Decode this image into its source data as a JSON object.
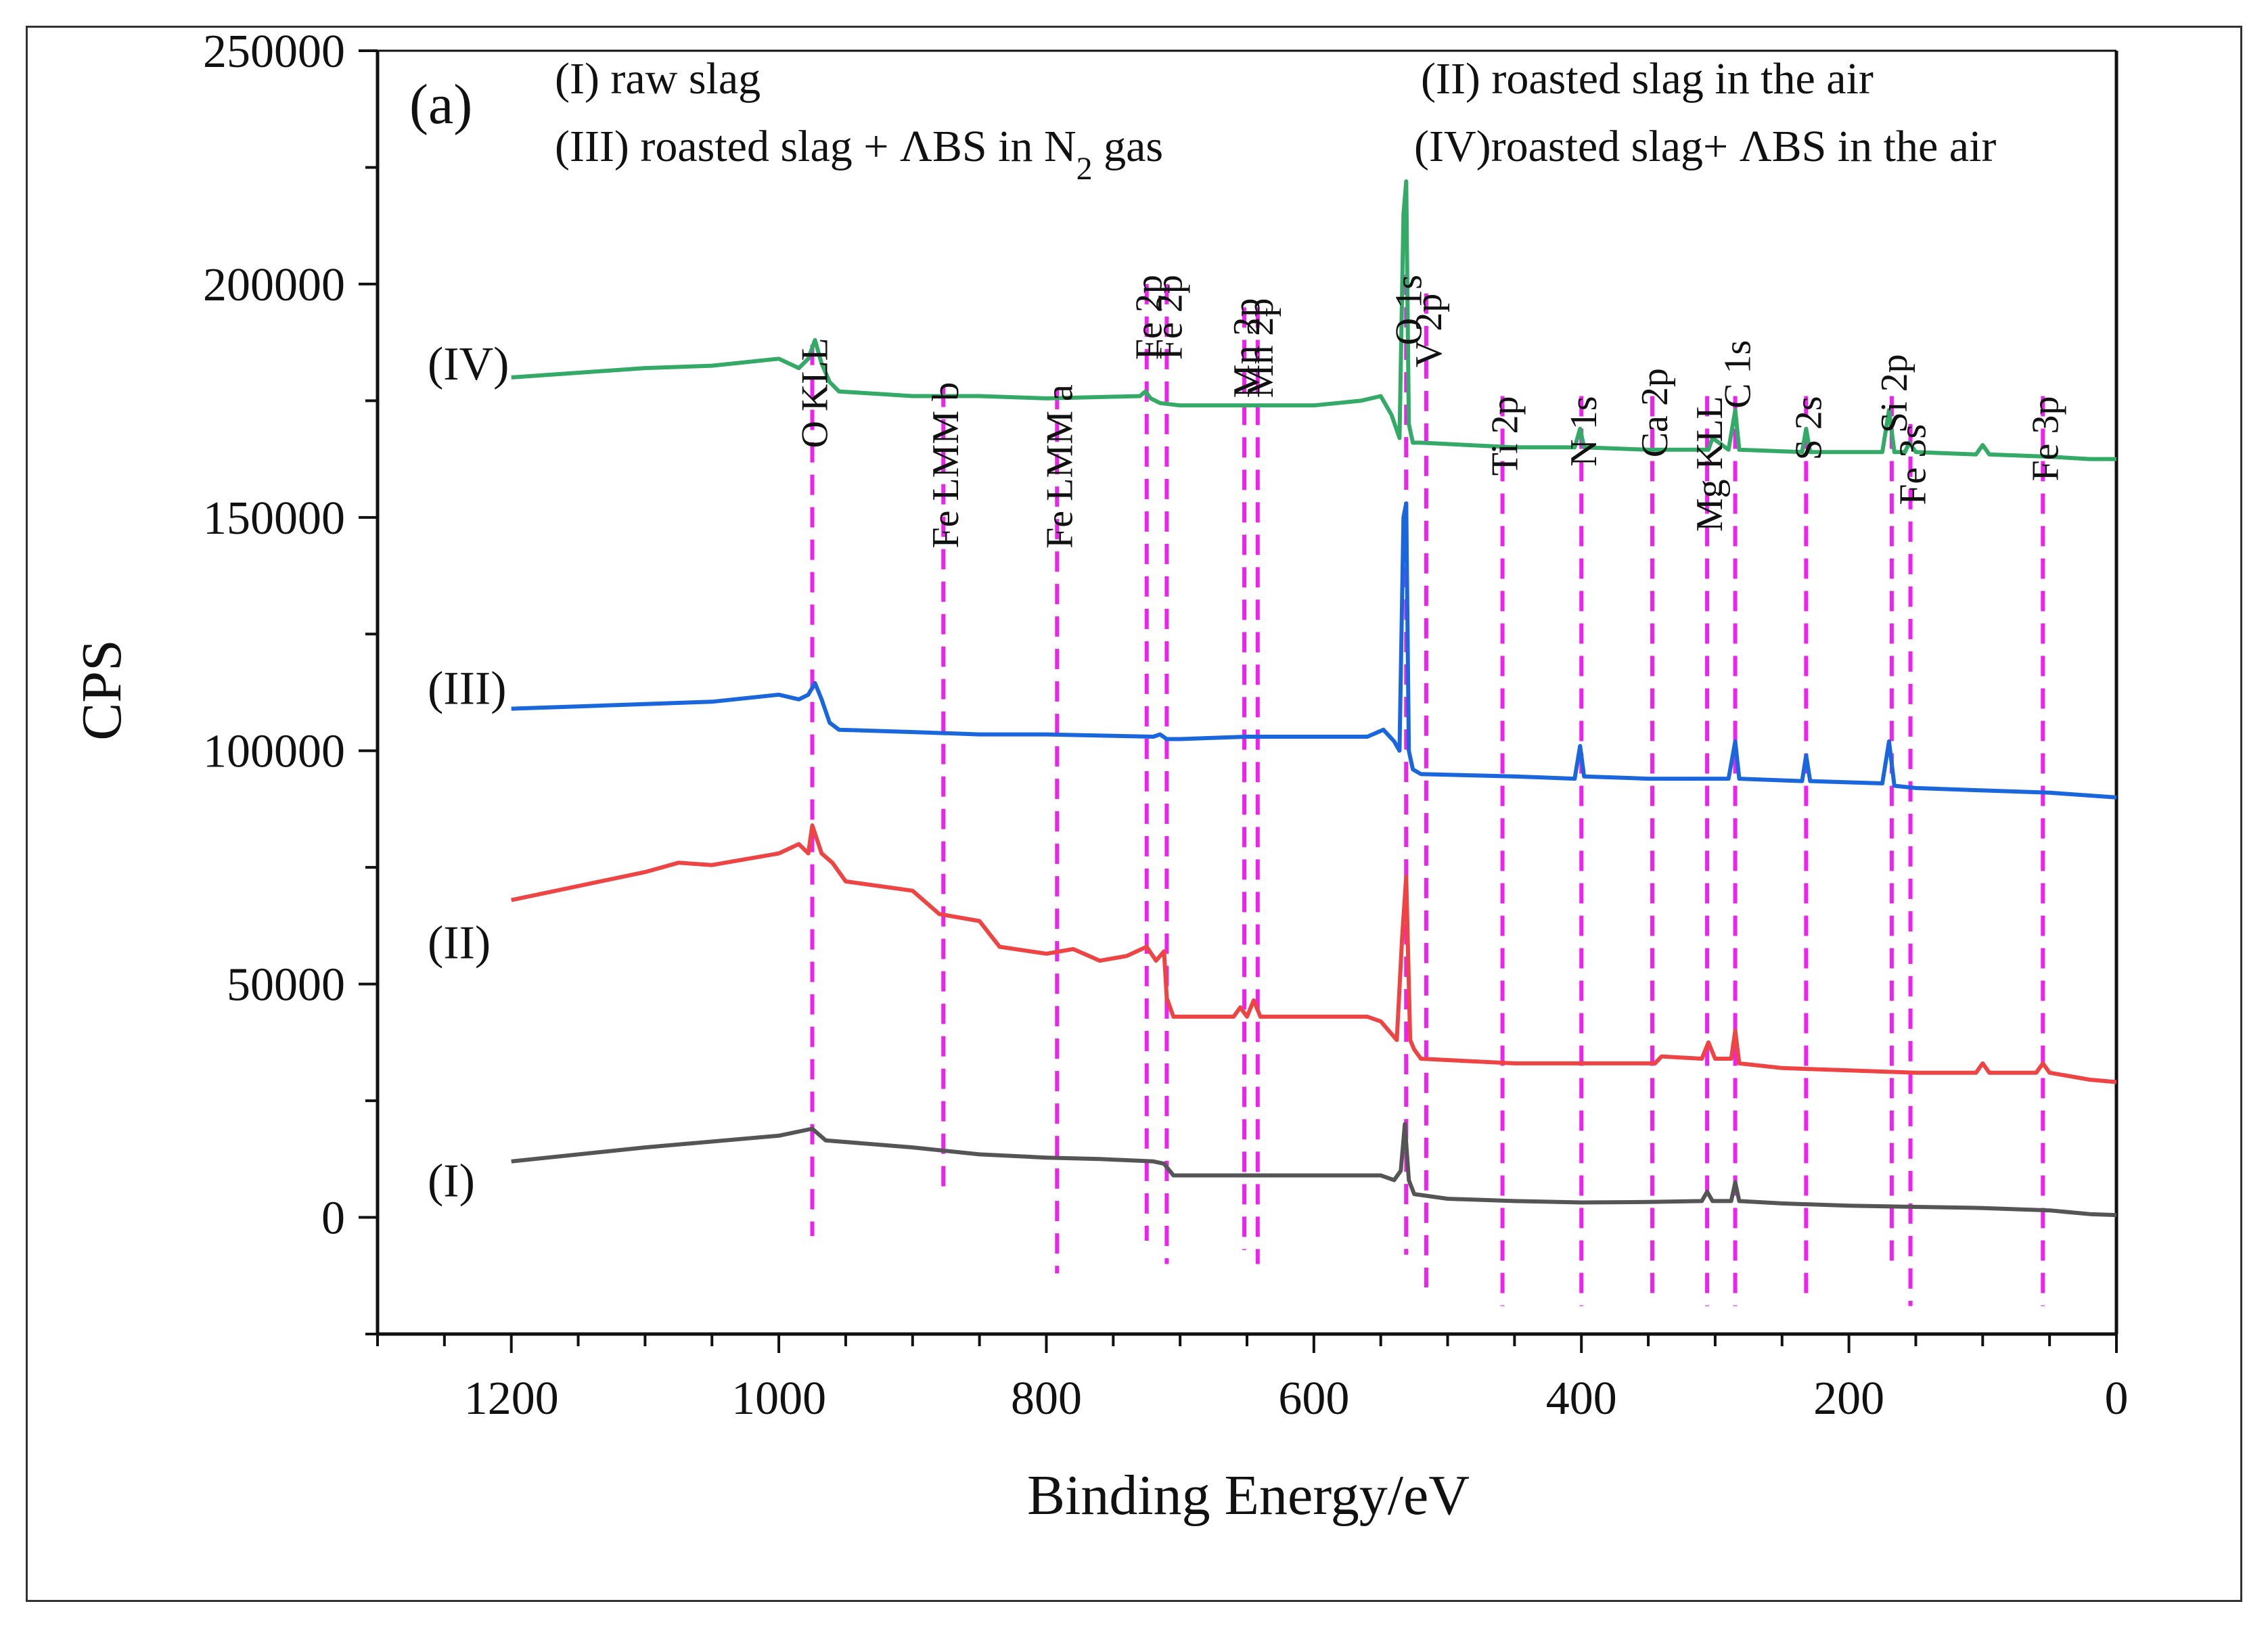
{
  "chart_data": {
    "type": "line",
    "panel_label": "(a)",
    "xlabel": "Binding Energy/eV",
    "ylabel": "CPS",
    "xlim": [
      1300,
      0
    ],
    "ylim": [
      -25000,
      250000
    ],
    "x_ticks": [
      1200,
      1000,
      800,
      600,
      400,
      200,
      0
    ],
    "y_ticks": [
      0,
      50000,
      100000,
      150000,
      200000,
      250000
    ],
    "grid": false,
    "legend": {
      "position": "top",
      "entries": [
        {
          "id": "I",
          "text": "(I) raw slag"
        },
        {
          "id": "II",
          "text": "(II) roasted slag in the air"
        },
        {
          "id": "III",
          "text": "(III) roasted slag + ΛBS in N",
          "subscript": "2",
          "suffix": " gas"
        },
        {
          "id": "IV",
          "text": "(IV)roasted slag+ ΛBS in the air"
        }
      ]
    },
    "series": [
      {
        "name": "(I)",
        "color": "#555555",
        "label_y": 8000,
        "points": [
          [
            1200,
            12000
          ],
          [
            1100,
            15000
          ],
          [
            1000,
            17500
          ],
          [
            975,
            19000
          ],
          [
            965,
            16500
          ],
          [
            900,
            15000
          ],
          [
            850,
            13500
          ],
          [
            800,
            12800
          ],
          [
            760,
            12500
          ],
          [
            720,
            12000
          ],
          [
            712,
            11500
          ],
          [
            705,
            9000
          ],
          [
            650,
            9000
          ],
          [
            550,
            9000
          ],
          [
            540,
            8000
          ],
          [
            535,
            10000
          ],
          [
            532,
            20000
          ],
          [
            529,
            8000
          ],
          [
            525,
            5000
          ],
          [
            500,
            4000
          ],
          [
            450,
            3500
          ],
          [
            400,
            3200
          ],
          [
            350,
            3300
          ],
          [
            310,
            3500
          ],
          [
            306,
            5500
          ],
          [
            302,
            3500
          ],
          [
            288,
            3500
          ],
          [
            285,
            7500
          ],
          [
            282,
            3500
          ],
          [
            250,
            3000
          ],
          [
            200,
            2500
          ],
          [
            100,
            2000
          ],
          [
            50,
            1500
          ],
          [
            20,
            700
          ],
          [
            0,
            500
          ]
        ]
      },
      {
        "name": "(II)",
        "color": "#ee4444",
        "label_y": 59000,
        "points": [
          [
            1200,
            68000
          ],
          [
            1150,
            71000
          ],
          [
            1100,
            74000
          ],
          [
            1075,
            76000
          ],
          [
            1050,
            75500
          ],
          [
            1000,
            78000
          ],
          [
            985,
            80000
          ],
          [
            978,
            78000
          ],
          [
            975,
            84000
          ],
          [
            968,
            78000
          ],
          [
            960,
            76000
          ],
          [
            950,
            72000
          ],
          [
            900,
            70000
          ],
          [
            880,
            65000
          ],
          [
            850,
            63500
          ],
          [
            835,
            58000
          ],
          [
            800,
            56500
          ],
          [
            780,
            57500
          ],
          [
            760,
            55000
          ],
          [
            740,
            56000
          ],
          [
            725,
            58000
          ],
          [
            718,
            55000
          ],
          [
            712,
            57000
          ],
          [
            710,
            47000
          ],
          [
            705,
            43000
          ],
          [
            660,
            43000
          ],
          [
            655,
            45000
          ],
          [
            650,
            43000
          ],
          [
            645,
            46500
          ],
          [
            640,
            43000
          ],
          [
            600,
            43000
          ],
          [
            560,
            43000
          ],
          [
            550,
            42000
          ],
          [
            538,
            38000
          ],
          [
            534,
            60000
          ],
          [
            531,
            73000
          ],
          [
            528,
            38000
          ],
          [
            525,
            36000
          ],
          [
            520,
            34000
          ],
          [
            450,
            33000
          ],
          [
            400,
            33000
          ],
          [
            345,
            33000
          ],
          [
            340,
            34500
          ],
          [
            310,
            34000
          ],
          [
            305,
            37500
          ],
          [
            300,
            34000
          ],
          [
            288,
            34000
          ],
          [
            285,
            40000
          ],
          [
            282,
            33000
          ],
          [
            250,
            32000
          ],
          [
            200,
            31500
          ],
          [
            150,
            31000
          ],
          [
            105,
            31000
          ],
          [
            100,
            33000
          ],
          [
            95,
            31000
          ],
          [
            60,
            31000
          ],
          [
            55,
            33000
          ],
          [
            50,
            31000
          ],
          [
            20,
            29500
          ],
          [
            0,
            29000
          ]
        ]
      },
      {
        "name": "(III)",
        "color": "#1a66dd",
        "label_y": 113500,
        "points": [
          [
            1200,
            109000
          ],
          [
            1150,
            109500
          ],
          [
            1100,
            110000
          ],
          [
            1050,
            110500
          ],
          [
            1000,
            112000
          ],
          [
            985,
            111000
          ],
          [
            978,
            112000
          ],
          [
            973,
            114500
          ],
          [
            968,
            111000
          ],
          [
            962,
            106000
          ],
          [
            955,
            104500
          ],
          [
            900,
            104000
          ],
          [
            850,
            103500
          ],
          [
            800,
            103500
          ],
          [
            720,
            103000
          ],
          [
            715,
            103500
          ],
          [
            710,
            102500
          ],
          [
            700,
            102500
          ],
          [
            650,
            103000
          ],
          [
            560,
            103000
          ],
          [
            548,
            104500
          ],
          [
            540,
            102000
          ],
          [
            536,
            100000
          ],
          [
            533,
            150000
          ],
          [
            531,
            153000
          ],
          [
            529,
            100000
          ],
          [
            526,
            96000
          ],
          [
            520,
            95000
          ],
          [
            450,
            94500
          ],
          [
            405,
            94000
          ],
          [
            401,
            101000
          ],
          [
            398,
            94500
          ],
          [
            350,
            94000
          ],
          [
            290,
            94000
          ],
          [
            285,
            102000
          ],
          [
            282,
            94000
          ],
          [
            235,
            93500
          ],
          [
            232,
            99000
          ],
          [
            229,
            93500
          ],
          [
            175,
            93000
          ],
          [
            170,
            102000
          ],
          [
            166,
            92500
          ],
          [
            150,
            92000
          ],
          [
            100,
            91500
          ],
          [
            50,
            91000
          ],
          [
            0,
            90000
          ]
        ]
      },
      {
        "name": "(IV)",
        "color": "#33aa66",
        "label_y": 183000,
        "points": [
          [
            1200,
            180000
          ],
          [
            1150,
            181000
          ],
          [
            1100,
            182000
          ],
          [
            1050,
            182500
          ],
          [
            1000,
            184000
          ],
          [
            985,
            182000
          ],
          [
            978,
            184000
          ],
          [
            973,
            188000
          ],
          [
            968,
            183000
          ],
          [
            962,
            179000
          ],
          [
            955,
            177000
          ],
          [
            900,
            176000
          ],
          [
            850,
            176000
          ],
          [
            800,
            175500
          ],
          [
            730,
            176000
          ],
          [
            726,
            177000
          ],
          [
            722,
            175500
          ],
          [
            715,
            174500
          ],
          [
            700,
            174000
          ],
          [
            660,
            174000
          ],
          [
            600,
            174000
          ],
          [
            565,
            175000
          ],
          [
            550,
            176000
          ],
          [
            542,
            172000
          ],
          [
            536,
            167000
          ],
          [
            533,
            215000
          ],
          [
            531,
            222000
          ],
          [
            529,
            170000
          ],
          [
            526,
            166000
          ],
          [
            520,
            166000
          ],
          [
            450,
            165000
          ],
          [
            405,
            165000
          ],
          [
            401,
            169000
          ],
          [
            398,
            165000
          ],
          [
            350,
            164500
          ],
          [
            305,
            164500
          ],
          [
            302,
            167000
          ],
          [
            290,
            164500
          ],
          [
            285,
            173000
          ],
          [
            282,
            164500
          ],
          [
            235,
            164000
          ],
          [
            232,
            169000
          ],
          [
            229,
            164000
          ],
          [
            175,
            164000
          ],
          [
            170,
            173000
          ],
          [
            166,
            164000
          ],
          [
            158,
            164000
          ],
          [
            155,
            166000
          ],
          [
            150,
            164000
          ],
          [
            105,
            163500
          ],
          [
            100,
            165500
          ],
          [
            95,
            163500
          ],
          [
            50,
            163000
          ],
          [
            20,
            162500
          ],
          [
            0,
            162500
          ]
        ]
      }
    ],
    "peak_markers": [
      {
        "label": "O KLL",
        "x": 975,
        "y_top": 187000,
        "y_bottom": -4000,
        "label_y": 188500
      },
      {
        "label": "Fe LMM b",
        "x": 877,
        "y_top": 178000,
        "y_bottom": 6000,
        "label_y": 179000
      },
      {
        "label": "Fe LMM a",
        "x": 792,
        "y_top": 177500,
        "y_bottom": -12000,
        "label_y": 178500
      },
      {
        "label": "Fe 2p",
        "x": 725,
        "y_top": 200000,
        "y_bottom": -5000,
        "label_y": 202000
      },
      {
        "label": "Fe 2p",
        "x": 710,
        "y_top": 200000,
        "y_bottom": -10000,
        "label_y": 202000
      },
      {
        "label": "Mn 2p",
        "x": 652,
        "y_top": 195000,
        "y_bottom": -7000,
        "label_y": 197000
      },
      {
        "label": "Mn 2p",
        "x": 642,
        "y_top": 195000,
        "y_bottom": -10000,
        "label_y": 197000
      },
      {
        "label": "O 1s",
        "x": 531,
        "y_top": 202000,
        "y_bottom": -8000,
        "label_y": 202000
      },
      {
        "label": "V 2p",
        "x": 516,
        "y_top": 198000,
        "y_bottom": -15000,
        "label_y": 198000
      },
      {
        "label": "Ti 2p",
        "x": 459,
        "y_top": 176000,
        "y_bottom": -19000,
        "label_y": 176000
      },
      {
        "label": "N 1s",
        "x": 400,
        "y_top": 176000,
        "y_bottom": -19000,
        "label_y": 176000
      },
      {
        "label": "Ca 2p",
        "x": 347,
        "y_top": 176000,
        "y_bottom": -18000,
        "label_y": 182000
      },
      {
        "label": "Mg KLL",
        "x": 306,
        "y_top": 176000,
        "y_bottom": -19000,
        "label_y": 176000
      },
      {
        "label": "C 1s",
        "x": 285,
        "y_top": 176000,
        "y_bottom": -19000,
        "label_y": 188000
      },
      {
        "label": "S 2s",
        "x": 232,
        "y_top": 176000,
        "y_bottom": -18000,
        "label_y": 176000
      },
      {
        "label": "Si 2p",
        "x": 168,
        "y_top": 176000,
        "y_bottom": -11000,
        "label_y": 185000
      },
      {
        "label": "Fe 3s",
        "x": 154,
        "y_top": 170000,
        "y_bottom": -19000,
        "label_y": 170000
      },
      {
        "label": "Fe 3p",
        "x": 55,
        "y_top": 176000,
        "y_bottom": -19000,
        "label_y": 176000
      }
    ]
  }
}
